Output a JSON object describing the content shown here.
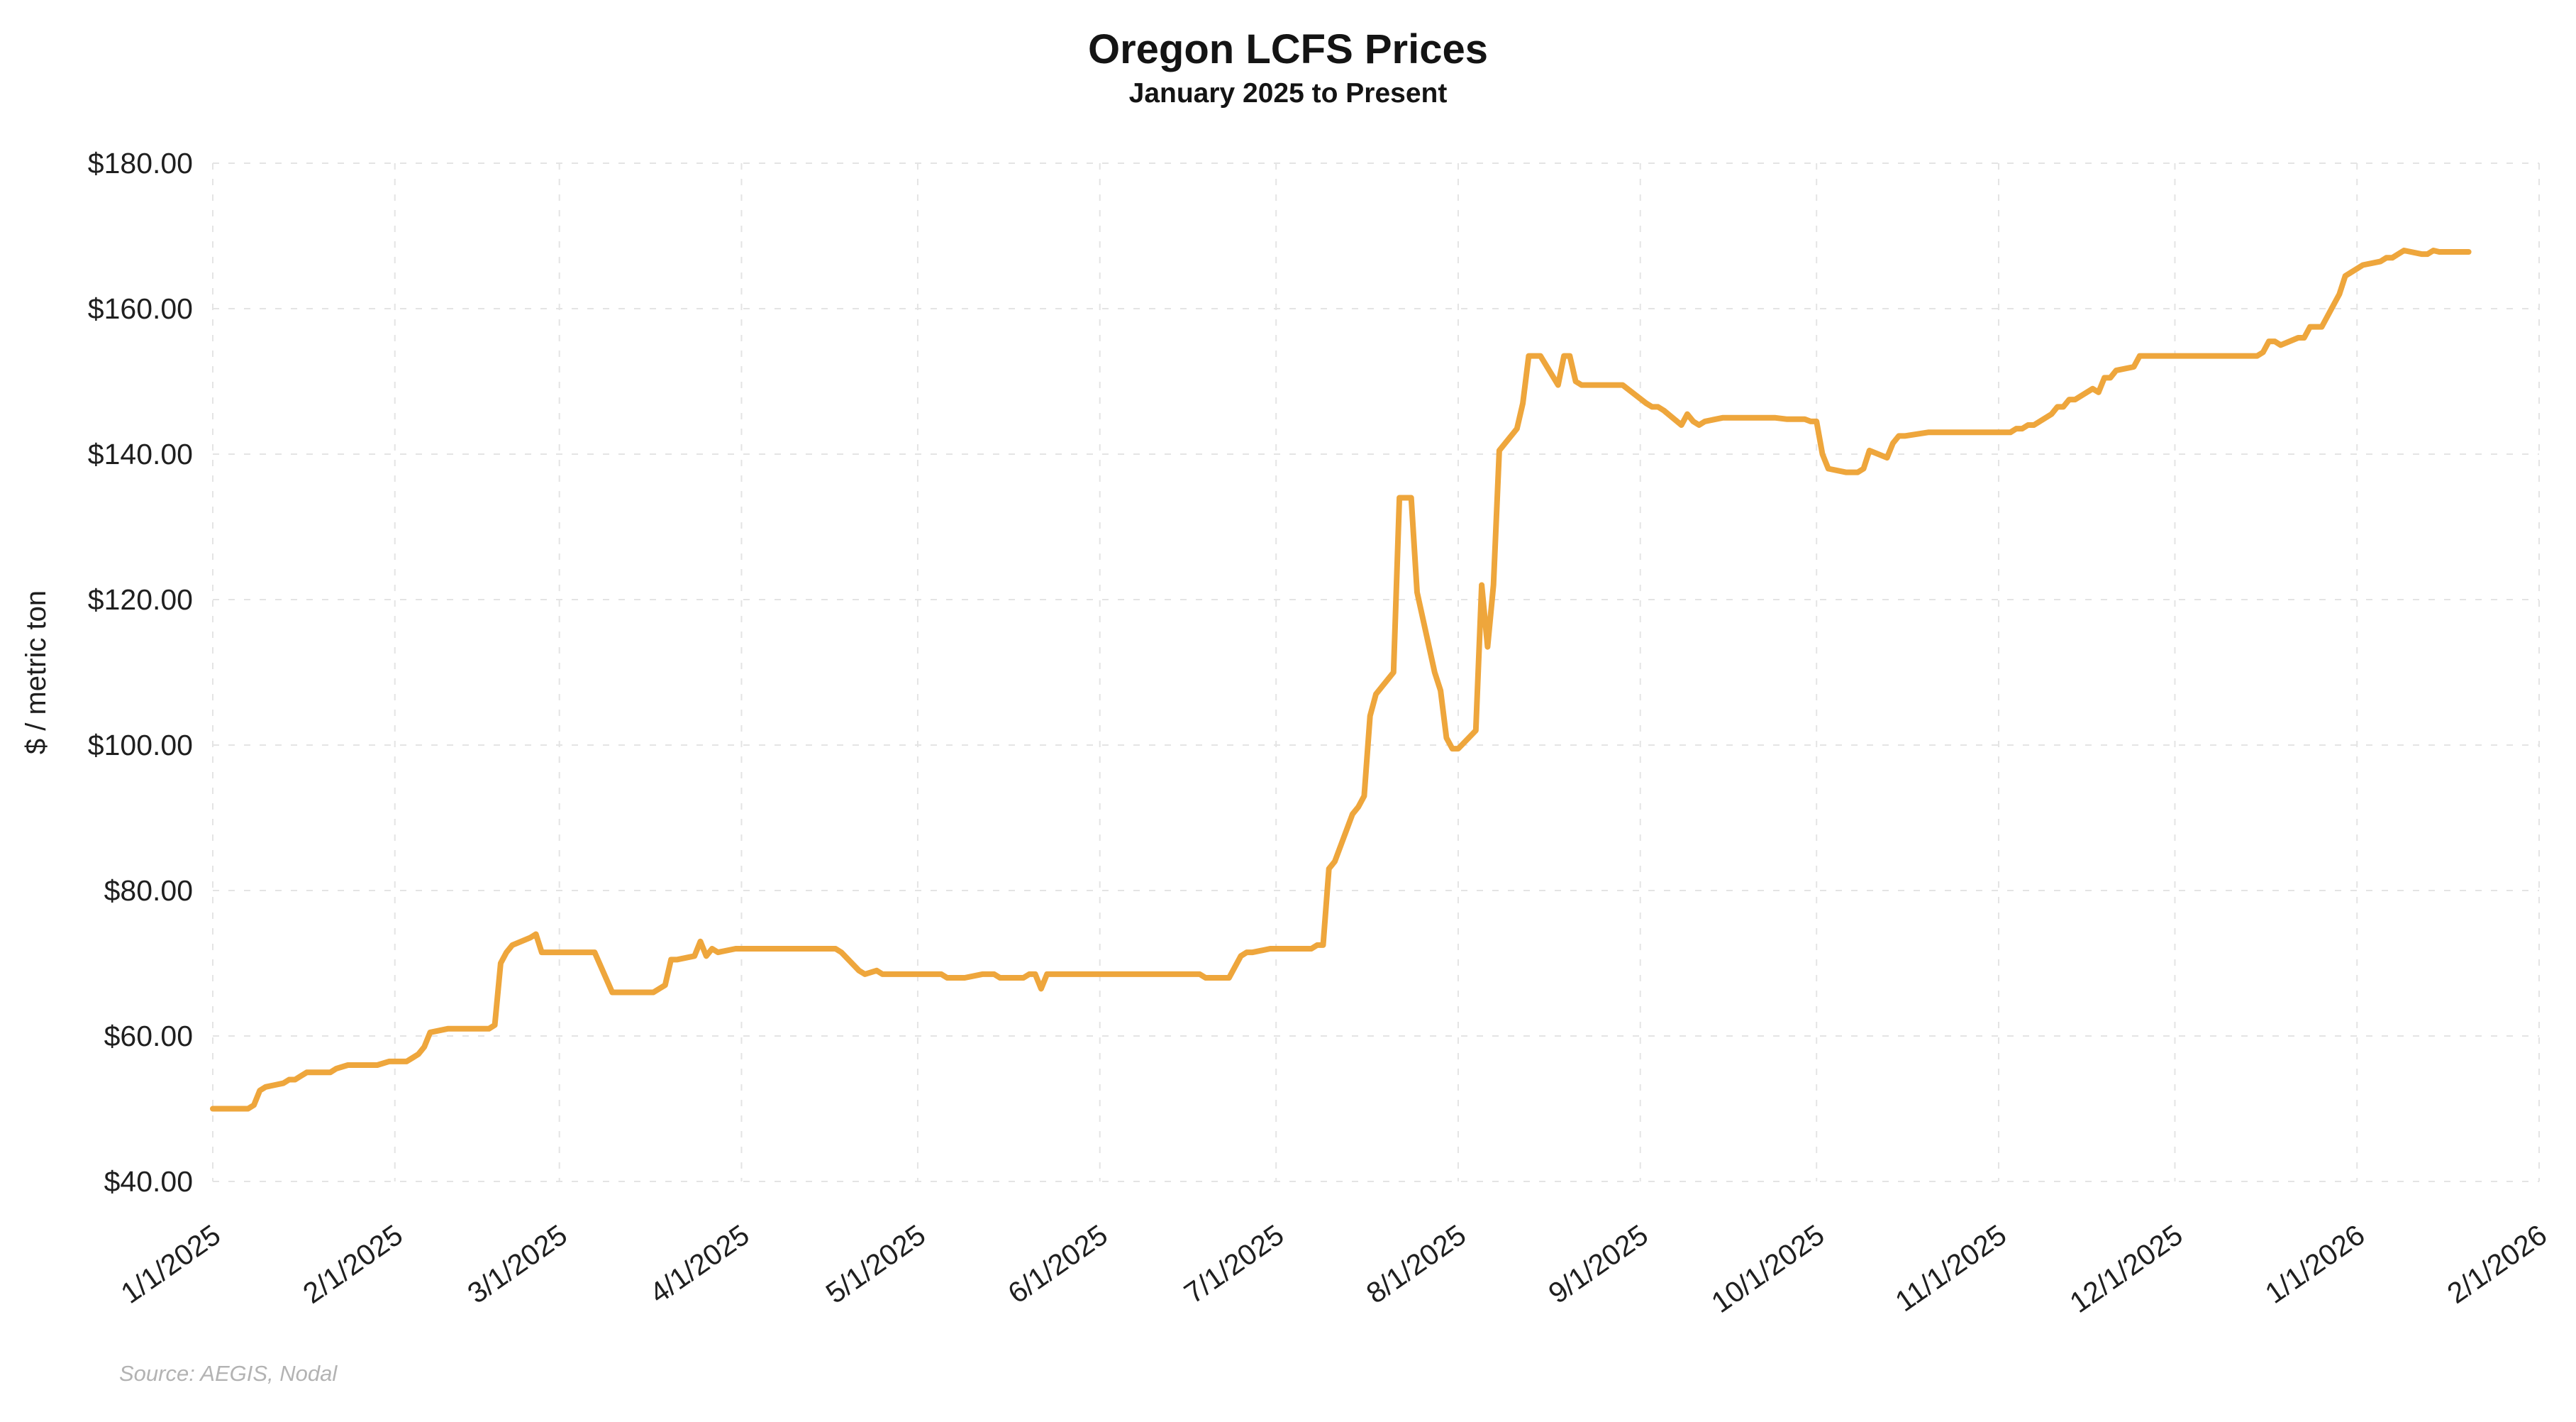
{
  "chart_data": {
    "type": "line",
    "title": "Oregon LCFS Prices",
    "subtitle": "January 2025 to Present",
    "ylabel": "$ / metric ton",
    "xlabel": "",
    "source": "Source: AEGIS, Nodal",
    "ylim": [
      40,
      180
    ],
    "x_range": [
      "1/1/2025",
      "2/1/2026"
    ],
    "grid": true,
    "legend_position": "none",
    "y_ticks": [
      "$40.00",
      "$60.00",
      "$80.00",
      "$100.00",
      "$120.00",
      "$140.00",
      "$160.00",
      "$180.00"
    ],
    "x_ticks": [
      "1/1/2025",
      "2/1/2025",
      "3/1/2025",
      "4/1/2025",
      "5/1/2025",
      "6/1/2025",
      "7/1/2025",
      "8/1/2025",
      "9/1/2025",
      "10/1/2025",
      "11/1/2025",
      "12/1/2025",
      "1/1/2026",
      "2/1/2026"
    ],
    "colors": {
      "line": "#EEA63C",
      "grid": "#E4E4E4",
      "axis_text": "#1F1F1F",
      "source_text": "#B3B3B3"
    },
    "series": [
      {
        "name": "Oregon LCFS",
        "points": [
          [
            "1/1/2025",
            50.0
          ],
          [
            "1/3/2025",
            50.0
          ],
          [
            "1/7/2025",
            50.0
          ],
          [
            "1/8/2025",
            50.5
          ],
          [
            "1/9/2025",
            52.5
          ],
          [
            "1/10/2025",
            53.0
          ],
          [
            "1/13/2025",
            53.5
          ],
          [
            "1/14/2025",
            54.0
          ],
          [
            "1/15/2025",
            54.0
          ],
          [
            "1/16/2025",
            54.5
          ],
          [
            "1/17/2025",
            55.0
          ],
          [
            "1/21/2025",
            55.0
          ],
          [
            "1/22/2025",
            55.5
          ],
          [
            "1/24/2025",
            56.0
          ],
          [
            "1/27/2025",
            56.0
          ],
          [
            "1/29/2025",
            56.0
          ],
          [
            "1/31/2025",
            56.5
          ],
          [
            "2/3/2025",
            56.5
          ],
          [
            "2/4/2025",
            57.0
          ],
          [
            "2/5/2025",
            57.5
          ],
          [
            "2/6/2025",
            58.5
          ],
          [
            "2/7/2025",
            60.5
          ],
          [
            "2/10/2025",
            61.0
          ],
          [
            "2/12/2025",
            61.0
          ],
          [
            "2/14/2025",
            61.0
          ],
          [
            "2/17/2025",
            61.0
          ],
          [
            "2/18/2025",
            61.5
          ],
          [
            "2/19/2025",
            70.0
          ],
          [
            "2/20/2025",
            71.5
          ],
          [
            "2/21/2025",
            72.5
          ],
          [
            "2/24/2025",
            73.5
          ],
          [
            "2/25/2025",
            74.0
          ],
          [
            "2/26/2025",
            71.5
          ],
          [
            "2/28/2025",
            71.5
          ],
          [
            "3/3/2025",
            71.5
          ],
          [
            "3/5/2025",
            71.5
          ],
          [
            "3/7/2025",
            71.5
          ],
          [
            "3/10/2025",
            66.0
          ],
          [
            "3/12/2025",
            66.0
          ],
          [
            "3/14/2025",
            66.0
          ],
          [
            "3/17/2025",
            66.0
          ],
          [
            "3/18/2025",
            66.5
          ],
          [
            "3/19/2025",
            67.0
          ],
          [
            "3/20/2025",
            70.5
          ],
          [
            "3/21/2025",
            70.5
          ],
          [
            "3/24/2025",
            71.0
          ],
          [
            "3/25/2025",
            73.0
          ],
          [
            "3/26/2025",
            71.0
          ],
          [
            "3/27/2025",
            72.0
          ],
          [
            "3/28/2025",
            71.5
          ],
          [
            "3/31/2025",
            72.0
          ],
          [
            "4/2/2025",
            72.0
          ],
          [
            "4/4/2025",
            72.0
          ],
          [
            "4/8/2025",
            72.0
          ],
          [
            "4/11/2025",
            72.0
          ],
          [
            "4/15/2025",
            72.0
          ],
          [
            "4/17/2025",
            72.0
          ],
          [
            "4/18/2025",
            71.5
          ],
          [
            "4/21/2025",
            69.0
          ],
          [
            "4/22/2025",
            68.5
          ],
          [
            "4/24/2025",
            69.0
          ],
          [
            "4/25/2025",
            68.5
          ],
          [
            "4/28/2025",
            68.5
          ],
          [
            "4/30/2025",
            68.5
          ],
          [
            "5/2/2025",
            68.5
          ],
          [
            "5/5/2025",
            68.5
          ],
          [
            "5/6/2025",
            68.0
          ],
          [
            "5/8/2025",
            68.0
          ],
          [
            "5/9/2025",
            68.0
          ],
          [
            "5/12/2025",
            68.5
          ],
          [
            "5/14/2025",
            68.5
          ],
          [
            "5/15/2025",
            68.0
          ],
          [
            "5/16/2025",
            68.0
          ],
          [
            "5/19/2025",
            68.0
          ],
          [
            "5/20/2025",
            68.5
          ],
          [
            "5/21/2025",
            68.5
          ],
          [
            "5/22/2025",
            66.5
          ],
          [
            "5/23/2025",
            68.5
          ],
          [
            "5/27/2025",
            68.5
          ],
          [
            "5/29/2025",
            68.5
          ],
          [
            "5/30/2025",
            68.5
          ],
          [
            "6/2/2025",
            68.5
          ],
          [
            "6/4/2025",
            68.5
          ],
          [
            "6/6/2025",
            68.5
          ],
          [
            "6/9/2025",
            68.5
          ],
          [
            "6/11/2025",
            68.5
          ],
          [
            "6/13/2025",
            68.5
          ],
          [
            "6/16/2025",
            68.5
          ],
          [
            "6/18/2025",
            68.5
          ],
          [
            "6/19/2025",
            68.0
          ],
          [
            "6/20/2025",
            68.0
          ],
          [
            "6/23/2025",
            68.0
          ],
          [
            "6/24/2025",
            69.5
          ],
          [
            "6/25/2025",
            71.0
          ],
          [
            "6/26/2025",
            71.5
          ],
          [
            "6/27/2025",
            71.5
          ],
          [
            "6/30/2025",
            72.0
          ],
          [
            "7/1/2025",
            72.0
          ],
          [
            "7/3/2025",
            72.0
          ],
          [
            "7/7/2025",
            72.0
          ],
          [
            "7/8/2025",
            72.5
          ],
          [
            "7/9/2025",
            72.5
          ],
          [
            "7/10/2025",
            83.0
          ],
          [
            "7/11/2025",
            84.0
          ],
          [
            "7/14/2025",
            90.5
          ],
          [
            "7/15/2025",
            91.5
          ],
          [
            "7/16/2025",
            93.0
          ],
          [
            "7/17/2025",
            104.0
          ],
          [
            "7/18/2025",
            107.0
          ],
          [
            "7/21/2025",
            110.0
          ],
          [
            "7/22/2025",
            134.0
          ],
          [
            "7/23/2025",
            134.0
          ],
          [
            "7/24/2025",
            134.0
          ],
          [
            "7/25/2025",
            121.0
          ],
          [
            "7/28/2025",
            110.0
          ],
          [
            "7/29/2025",
            107.5
          ],
          [
            "7/30/2025",
            101.0
          ],
          [
            "7/31/2025",
            99.5
          ],
          [
            "8/1/2025",
            99.5
          ],
          [
            "8/4/2025",
            102.0
          ],
          [
            "8/5/2025",
            122.0
          ],
          [
            "8/6/2025",
            113.5
          ],
          [
            "8/7/2025",
            122.0
          ],
          [
            "8/8/2025",
            140.5
          ],
          [
            "8/11/2025",
            143.5
          ],
          [
            "8/12/2025",
            147.0
          ],
          [
            "8/13/2025",
            153.5
          ],
          [
            "8/14/2025",
            153.5
          ],
          [
            "8/15/2025",
            153.5
          ],
          [
            "8/18/2025",
            149.5
          ],
          [
            "8/19/2025",
            153.5
          ],
          [
            "8/20/2025",
            153.5
          ],
          [
            "8/21/2025",
            150.0
          ],
          [
            "8/22/2025",
            149.5
          ],
          [
            "8/25/2025",
            149.5
          ],
          [
            "8/27/2025",
            149.5
          ],
          [
            "8/29/2025",
            149.5
          ],
          [
            "9/2/2025",
            147.0
          ],
          [
            "9/3/2025",
            146.5
          ],
          [
            "9/4/2025",
            146.5
          ],
          [
            "9/5/2025",
            146.0
          ],
          [
            "9/8/2025",
            144.0
          ],
          [
            "9/9/2025",
            145.5
          ],
          [
            "9/10/2025",
            144.5
          ],
          [
            "9/11/2025",
            144.0
          ],
          [
            "9/12/2025",
            144.5
          ],
          [
            "9/15/2025",
            145.0
          ],
          [
            "9/17/2025",
            145.0
          ],
          [
            "9/19/2025",
            145.0
          ],
          [
            "9/22/2025",
            145.0
          ],
          [
            "9/24/2025",
            145.0
          ],
          [
            "9/26/2025",
            144.8
          ],
          [
            "9/29/2025",
            144.8
          ],
          [
            "9/30/2025",
            144.5
          ],
          [
            "10/1/2025",
            144.5
          ],
          [
            "10/2/2025",
            140.0
          ],
          [
            "10/3/2025",
            138.0
          ],
          [
            "10/6/2025",
            137.5
          ],
          [
            "10/7/2025",
            137.5
          ],
          [
            "10/8/2025",
            137.5
          ],
          [
            "10/9/2025",
            138.0
          ],
          [
            "10/10/2025",
            140.5
          ],
          [
            "10/13/2025",
            139.5
          ],
          [
            "10/14/2025",
            141.5
          ],
          [
            "10/15/2025",
            142.5
          ],
          [
            "10/16/2025",
            142.5
          ],
          [
            "10/20/2025",
            143.0
          ],
          [
            "10/22/2025",
            143.0
          ],
          [
            "10/24/2025",
            143.0
          ],
          [
            "10/28/2025",
            143.0
          ],
          [
            "10/31/2025",
            143.0
          ],
          [
            "11/3/2025",
            143.0
          ],
          [
            "11/4/2025",
            143.5
          ],
          [
            "11/5/2025",
            143.5
          ],
          [
            "11/6/2025",
            144.0
          ],
          [
            "11/7/2025",
            144.0
          ],
          [
            "11/10/2025",
            145.5
          ],
          [
            "11/11/2025",
            146.5
          ],
          [
            "11/12/2025",
            146.5
          ],
          [
            "11/13/2025",
            147.5
          ],
          [
            "11/14/2025",
            147.5
          ],
          [
            "11/17/2025",
            149.0
          ],
          [
            "11/18/2025",
            148.5
          ],
          [
            "11/19/2025",
            150.5
          ],
          [
            "11/20/2025",
            150.5
          ],
          [
            "11/21/2025",
            151.5
          ],
          [
            "11/24/2025",
            152.0
          ],
          [
            "11/25/2025",
            153.5
          ],
          [
            "11/26/2025",
            153.5
          ],
          [
            "11/28/2025",
            153.5
          ],
          [
            "12/1/2025",
            153.5
          ],
          [
            "12/3/2025",
            153.5
          ],
          [
            "12/5/2025",
            153.5
          ],
          [
            "12/8/2025",
            153.5
          ],
          [
            "12/10/2025",
            153.5
          ],
          [
            "12/12/2025",
            153.5
          ],
          [
            "12/15/2025",
            153.5
          ],
          [
            "12/16/2025",
            154.0
          ],
          [
            "12/17/2025",
            155.5
          ],
          [
            "12/18/2025",
            155.5
          ],
          [
            "12/19/2025",
            155.0
          ],
          [
            "12/22/2025",
            156.0
          ],
          [
            "12/23/2025",
            156.0
          ],
          [
            "12/24/2025",
            157.5
          ],
          [
            "12/26/2025",
            157.5
          ],
          [
            "12/29/2025",
            162.0
          ],
          [
            "12/30/2025",
            164.5
          ],
          [
            "12/31/2025",
            165.0
          ],
          [
            "1/2/2026",
            166.0
          ],
          [
            "1/5/2026",
            166.5
          ],
          [
            "1/6/2026",
            167.0
          ],
          [
            "1/7/2026",
            167.0
          ],
          [
            "1/8/2026",
            167.5
          ],
          [
            "1/9/2026",
            168.0
          ],
          [
            "1/12/2026",
            167.5
          ],
          [
            "1/13/2026",
            167.5
          ],
          [
            "1/14/2026",
            168.0
          ],
          [
            "1/15/2026",
            167.8
          ],
          [
            "1/16/2026",
            167.8
          ],
          [
            "1/19/2026",
            167.8
          ],
          [
            "1/20/2026",
            167.8
          ]
        ]
      }
    ]
  }
}
